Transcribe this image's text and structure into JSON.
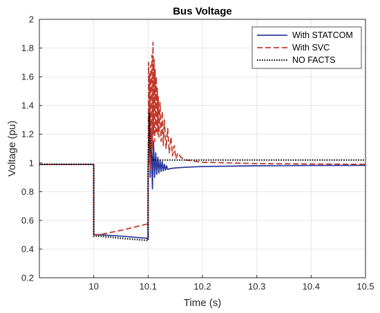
{
  "chart_data": {
    "type": "line",
    "title": "Bus Voltage",
    "xlabel": "Time (s)",
    "ylabel": "Voltage (pu)",
    "xlim": [
      9.9,
      10.5
    ],
    "ylim": [
      0.2,
      2
    ],
    "xticks": [
      10,
      10.1,
      10.2,
      10.3,
      10.4,
      10.5
    ],
    "xtick_labels": [
      "10",
      "10.1",
      "10.2",
      "10.3",
      "10.4",
      "10.5"
    ],
    "yticks": [
      0.2,
      0.4,
      0.6,
      0.8,
      1,
      1.2,
      1.4,
      1.6,
      1.8,
      2
    ],
    "ytick_labels": [
      "0.2",
      "0.4",
      "0.6",
      "0.8",
      "1",
      "1.2",
      "1.4",
      "1.6",
      "1.8",
      "2"
    ],
    "grid": true,
    "legend_position": "top-right",
    "series": [
      {
        "name": "With STATCOM",
        "color": "#2f3b9e",
        "style": "solid",
        "x": [
          9.9,
          9.999,
          10.0,
          10.0,
          10.01,
          10.05,
          10.099,
          10.1,
          10.1,
          10.102,
          10.104,
          10.106,
          10.108,
          10.11,
          10.112,
          10.114,
          10.116,
          10.118,
          10.12,
          10.122,
          10.124,
          10.126,
          10.128,
          10.13,
          10.132,
          10.134,
          10.136,
          10.14,
          10.15,
          10.17,
          10.2,
          10.3,
          10.4,
          10.5
        ],
        "y": [
          0.99,
          0.99,
          0.99,
          0.5,
          0.5,
          0.49,
          0.475,
          0.475,
          0.9,
          1.38,
          0.9,
          1.2,
          0.82,
          1.15,
          0.9,
          1.07,
          0.92,
          1.04,
          0.93,
          1.02,
          0.94,
          1.01,
          0.945,
          0.99,
          0.95,
          0.98,
          0.955,
          0.96,
          0.965,
          0.97,
          0.975,
          0.98,
          0.982,
          0.983
        ]
      },
      {
        "name": "With SVC",
        "color": "#c0392b",
        "style": "dashed",
        "x": [
          9.9,
          9.999,
          10.0,
          10.0,
          10.01,
          10.05,
          10.099,
          10.1,
          10.1,
          10.101,
          10.102,
          10.103,
          10.104,
          10.105,
          10.106,
          10.107,
          10.108,
          10.109,
          10.11,
          10.111,
          10.112,
          10.113,
          10.114,
          10.115,
          10.116,
          10.117,
          10.118,
          10.119,
          10.12,
          10.122,
          10.124,
          10.126,
          10.128,
          10.13,
          10.133,
          10.136,
          10.139,
          10.142,
          10.145,
          10.148,
          10.151,
          10.155,
          10.16,
          10.17,
          10.18,
          10.2,
          10.25,
          10.3,
          10.4,
          10.5
        ],
        "y": [
          0.99,
          0.99,
          0.99,
          0.5,
          0.5,
          0.53,
          0.575,
          0.575,
          0.7,
          1.7,
          1.0,
          1.62,
          0.95,
          1.68,
          1.05,
          1.75,
          1.1,
          1.84,
          1.2,
          1.72,
          1.15,
          1.65,
          1.2,
          1.6,
          1.22,
          1.52,
          1.2,
          1.46,
          1.18,
          1.42,
          1.15,
          1.36,
          1.12,
          1.3,
          1.1,
          1.24,
          1.07,
          1.18,
          1.05,
          1.12,
          1.03,
          1.07,
          1.04,
          1.02,
          1.015,
          1.005,
          1.0,
          0.995,
          0.992,
          0.99
        ]
      },
      {
        "name": "NO FACTS",
        "color": "#000000",
        "style": "dotted",
        "x": [
          9.9,
          9.999,
          10.0,
          10.0,
          10.01,
          10.05,
          10.099,
          10.1,
          10.1,
          10.102,
          10.104,
          10.106,
          10.108,
          10.11,
          10.12,
          10.15,
          10.2,
          10.3,
          10.4,
          10.5
        ],
        "y": [
          0.99,
          0.99,
          0.99,
          0.49,
          0.49,
          0.475,
          0.46,
          0.46,
          0.95,
          1.35,
          1.1,
          1.05,
          1.03,
          1.02,
          1.02,
          1.02,
          1.02,
          1.02,
          1.02,
          1.02
        ]
      }
    ]
  }
}
